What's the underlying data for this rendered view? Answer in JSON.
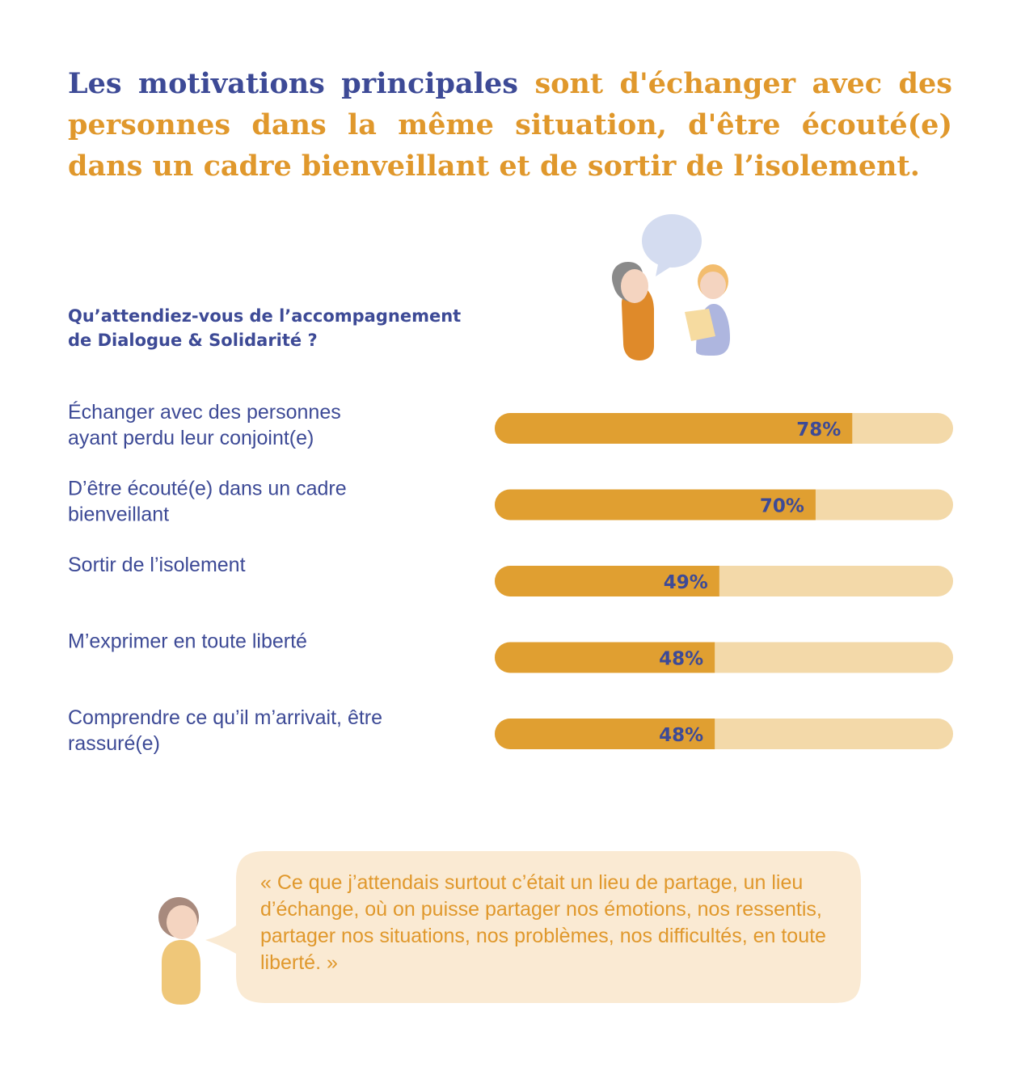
{
  "headline": {
    "part_blue": "Les motivations principales",
    "part_orange": "sont d'échanger avec des personnes dans la même situation, d'être écouté(e) dans un cadre bienveillant et de sortir de l’isolement."
  },
  "question": {
    "line1": "Qu’attendiez-vous de l’accompagnement",
    "line2": "de Dialogue & Solidarité ?"
  },
  "colors": {
    "blue": "#3d4a96",
    "orange": "#e0982c",
    "bar_fill": "#e09f31",
    "bar_track": "#f3d9a9",
    "bubble_quote": "#faead3",
    "bubble_top": "#d4dcf0"
  },
  "chart_data": {
    "type": "bar",
    "orientation": "horizontal",
    "xlim": [
      0,
      100
    ],
    "unit": "%",
    "categories": [
      [
        "Échanger avec des personnes",
        "ayant perdu leur conjoint(e)"
      ],
      [
        "D’être écouté(e) dans un cadre",
        "bienveillant"
      ],
      [
        "Sortir de l’isolement"
      ],
      [
        "M’exprimer en toute liberté"
      ],
      [
        "Comprendre ce qu’il m’arrivait, être",
        "rassuré(e)"
      ]
    ],
    "values": [
      78,
      70,
      49,
      48,
      48
    ],
    "value_labels": [
      "78%",
      "70%",
      "49%",
      "48%",
      "48%"
    ]
  },
  "quote": {
    "text": "« Ce que j’attendais surtout c’était un lieu de partage, un lieu d’échange, où on puisse partager nos émotions, nos ressentis, partager nos situations, nos problèmes, nos difficultés, en toute liberté. »"
  },
  "icons": {
    "top": "two-people-conversation-icon",
    "bottom": "speaking-person-icon"
  }
}
